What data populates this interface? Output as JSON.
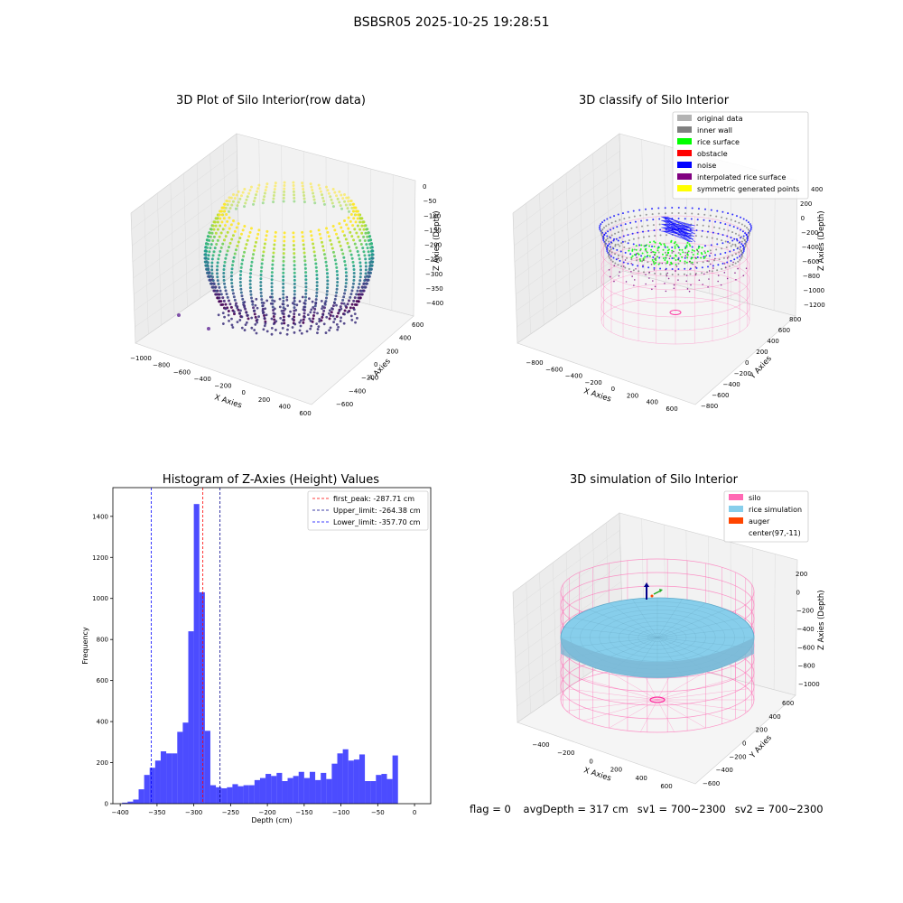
{
  "suptitle": "BSBSR05 2025-10-25 19:28:51",
  "panels": {
    "raw": {
      "title": "3D Plot of Silo Interior(row data)",
      "xlabel": "X Axies",
      "ylabel": "Y Axies",
      "zlabel": "Z Axies (Depth)",
      "x_ticks": [
        "−1000",
        "−800",
        "−600",
        "−400",
        "−200",
        "0",
        "200",
        "400",
        "600"
      ],
      "y_ticks": [
        "−600",
        "−400",
        "−200",
        "0",
        "200",
        "400",
        "600"
      ],
      "z_ticks": [
        "0",
        "−50",
        "−100",
        "−150",
        "−200",
        "−250",
        "−300",
        "−350",
        "−400"
      ]
    },
    "classify": {
      "title": "3D classify of Silo Interior",
      "xlabel": "X Axies",
      "ylabel": "Y Axies",
      "zlabel": "Z Axies (Depth)",
      "x_ticks": [
        "−800",
        "−600",
        "−400",
        "−200",
        "0",
        "200",
        "400",
        "600"
      ],
      "y_ticks": [
        "−800",
        "−600",
        "−400",
        "−200",
        "0",
        "200",
        "400",
        "600",
        "800"
      ],
      "z_ticks": [
        "200",
        "0",
        "−200",
        "−400",
        "−600",
        "−800",
        "−1000",
        "−1200"
      ],
      "z_top_tick": "400",
      "legend": [
        {
          "label": "original data",
          "color": "#b3b3b3"
        },
        {
          "label": "inner wall",
          "color": "#808080"
        },
        {
          "label": "rice surface",
          "color": "#00ff00"
        },
        {
          "label": "obstacle",
          "color": "#ff0000"
        },
        {
          "label": "noise",
          "color": "#0000ff"
        },
        {
          "label": "interpolated rice surface",
          "color": "#800080"
        },
        {
          "label": "symmetric generated points",
          "color": "#ffff00"
        }
      ]
    },
    "histogram": {
      "title": "Histogram of Z-Axies (Height) Values",
      "legend": [
        {
          "label": "first_peak: -287.71 cm",
          "color": "#ff0000"
        },
        {
          "label": "Upper_limit: -264.38 cm",
          "color": "#00008b"
        },
        {
          "label": "Lower_limit: -357.70 cm",
          "color": "#0000ff"
        }
      ]
    },
    "simulation": {
      "title": "3D simulation of Silo Interior",
      "xlabel": "X Axies",
      "ylabel": "Y Axies",
      "zlabel": "Z Axies (Depth)",
      "x_ticks": [
        "−400",
        "−200",
        "0",
        "200",
        "400",
        "600"
      ],
      "y_ticks": [
        "−600",
        "−400",
        "−200",
        "0",
        "200",
        "400",
        "600"
      ],
      "z_ticks": [
        "200",
        "0",
        "−200",
        "−400",
        "−600",
        "−800",
        "−1000"
      ],
      "legend": [
        {
          "label": "silo",
          "color": "#ff69b4"
        },
        {
          "label": "rice simulation",
          "color": "#87ceeb"
        },
        {
          "label": "auger",
          "color": "#ff4500"
        },
        {
          "label": "center(97,-11)",
          "color": ""
        }
      ]
    }
  },
  "footer": {
    "flag": "flag = 0",
    "avg_depth": "avgDepth = 317 cm",
    "sv1": "sv1 = 700~2300",
    "sv2": "sv2 = 700~2300"
  },
  "chart_data": {
    "type": "bar",
    "title": "Histogram of Z-Axies (Height) Values",
    "xlabel": "Depth (cm)",
    "ylabel": "Frequency",
    "xlim": [
      -410,
      22
    ],
    "ylim": [
      0,
      1540
    ],
    "x_ticks": [
      -400,
      -350,
      -300,
      -250,
      -200,
      -150,
      -100,
      -50,
      0
    ],
    "y_ticks": [
      0,
      200,
      400,
      600,
      800,
      1000,
      1200,
      1400
    ],
    "bin_width": 7.5,
    "bin_start": -397.5,
    "values": [
      5,
      10,
      20,
      70,
      140,
      175,
      210,
      255,
      245,
      245,
      350,
      395,
      840,
      1460,
      1030,
      355,
      90,
      80,
      75,
      80,
      95,
      85,
      90,
      90,
      115,
      125,
      145,
      135,
      150,
      110,
      125,
      135,
      155,
      125,
      155,
      115,
      150,
      120,
      195,
      245,
      265,
      210,
      215,
      240,
      110,
      110,
      140,
      145,
      120,
      235
    ],
    "vlines": [
      {
        "x": -287.71,
        "color": "#ff0000"
      },
      {
        "x": -264.38,
        "color": "#00008b"
      },
      {
        "x": -357.7,
        "color": "#0000ff"
      }
    ]
  }
}
